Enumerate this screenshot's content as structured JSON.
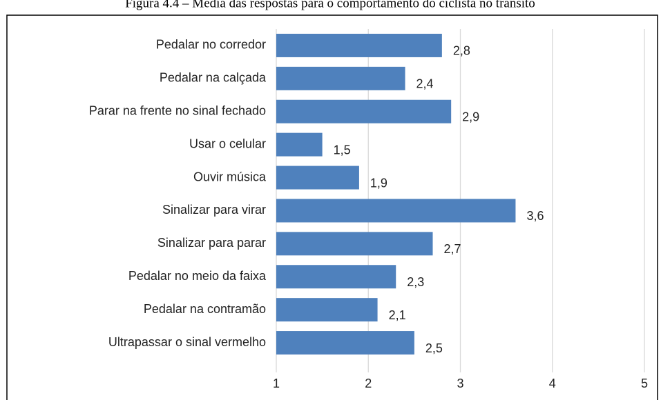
{
  "chart_data": {
    "type": "bar",
    "orientation": "horizontal",
    "title": "Figura 4.4 – Média das respostas para o comportamento do ciclista no trânsito",
    "categories": [
      "Pedalar no corredor",
      "Pedalar na calçada",
      "Parar na frente no sinal fechado",
      "Usar o celular",
      "Ouvir música",
      "Sinalizar para virar",
      "Sinalizar para parar",
      "Pedalar no meio da faixa",
      "Pedalar na contramão",
      "Ultrapassar o sinal vermelho"
    ],
    "values": [
      2.8,
      2.4,
      2.9,
      1.5,
      1.9,
      3.6,
      2.7,
      2.3,
      2.1,
      2.5
    ],
    "value_labels": [
      "2,8",
      "2,4",
      "2,9",
      "1,5",
      "1,9",
      "3,6",
      "2,7",
      "2,3",
      "2,1",
      "2,5"
    ],
    "color": "#4f81bd",
    "xlim": [
      1,
      5
    ],
    "xticks": [
      1,
      2,
      3,
      4,
      5
    ],
    "grid": true
  }
}
